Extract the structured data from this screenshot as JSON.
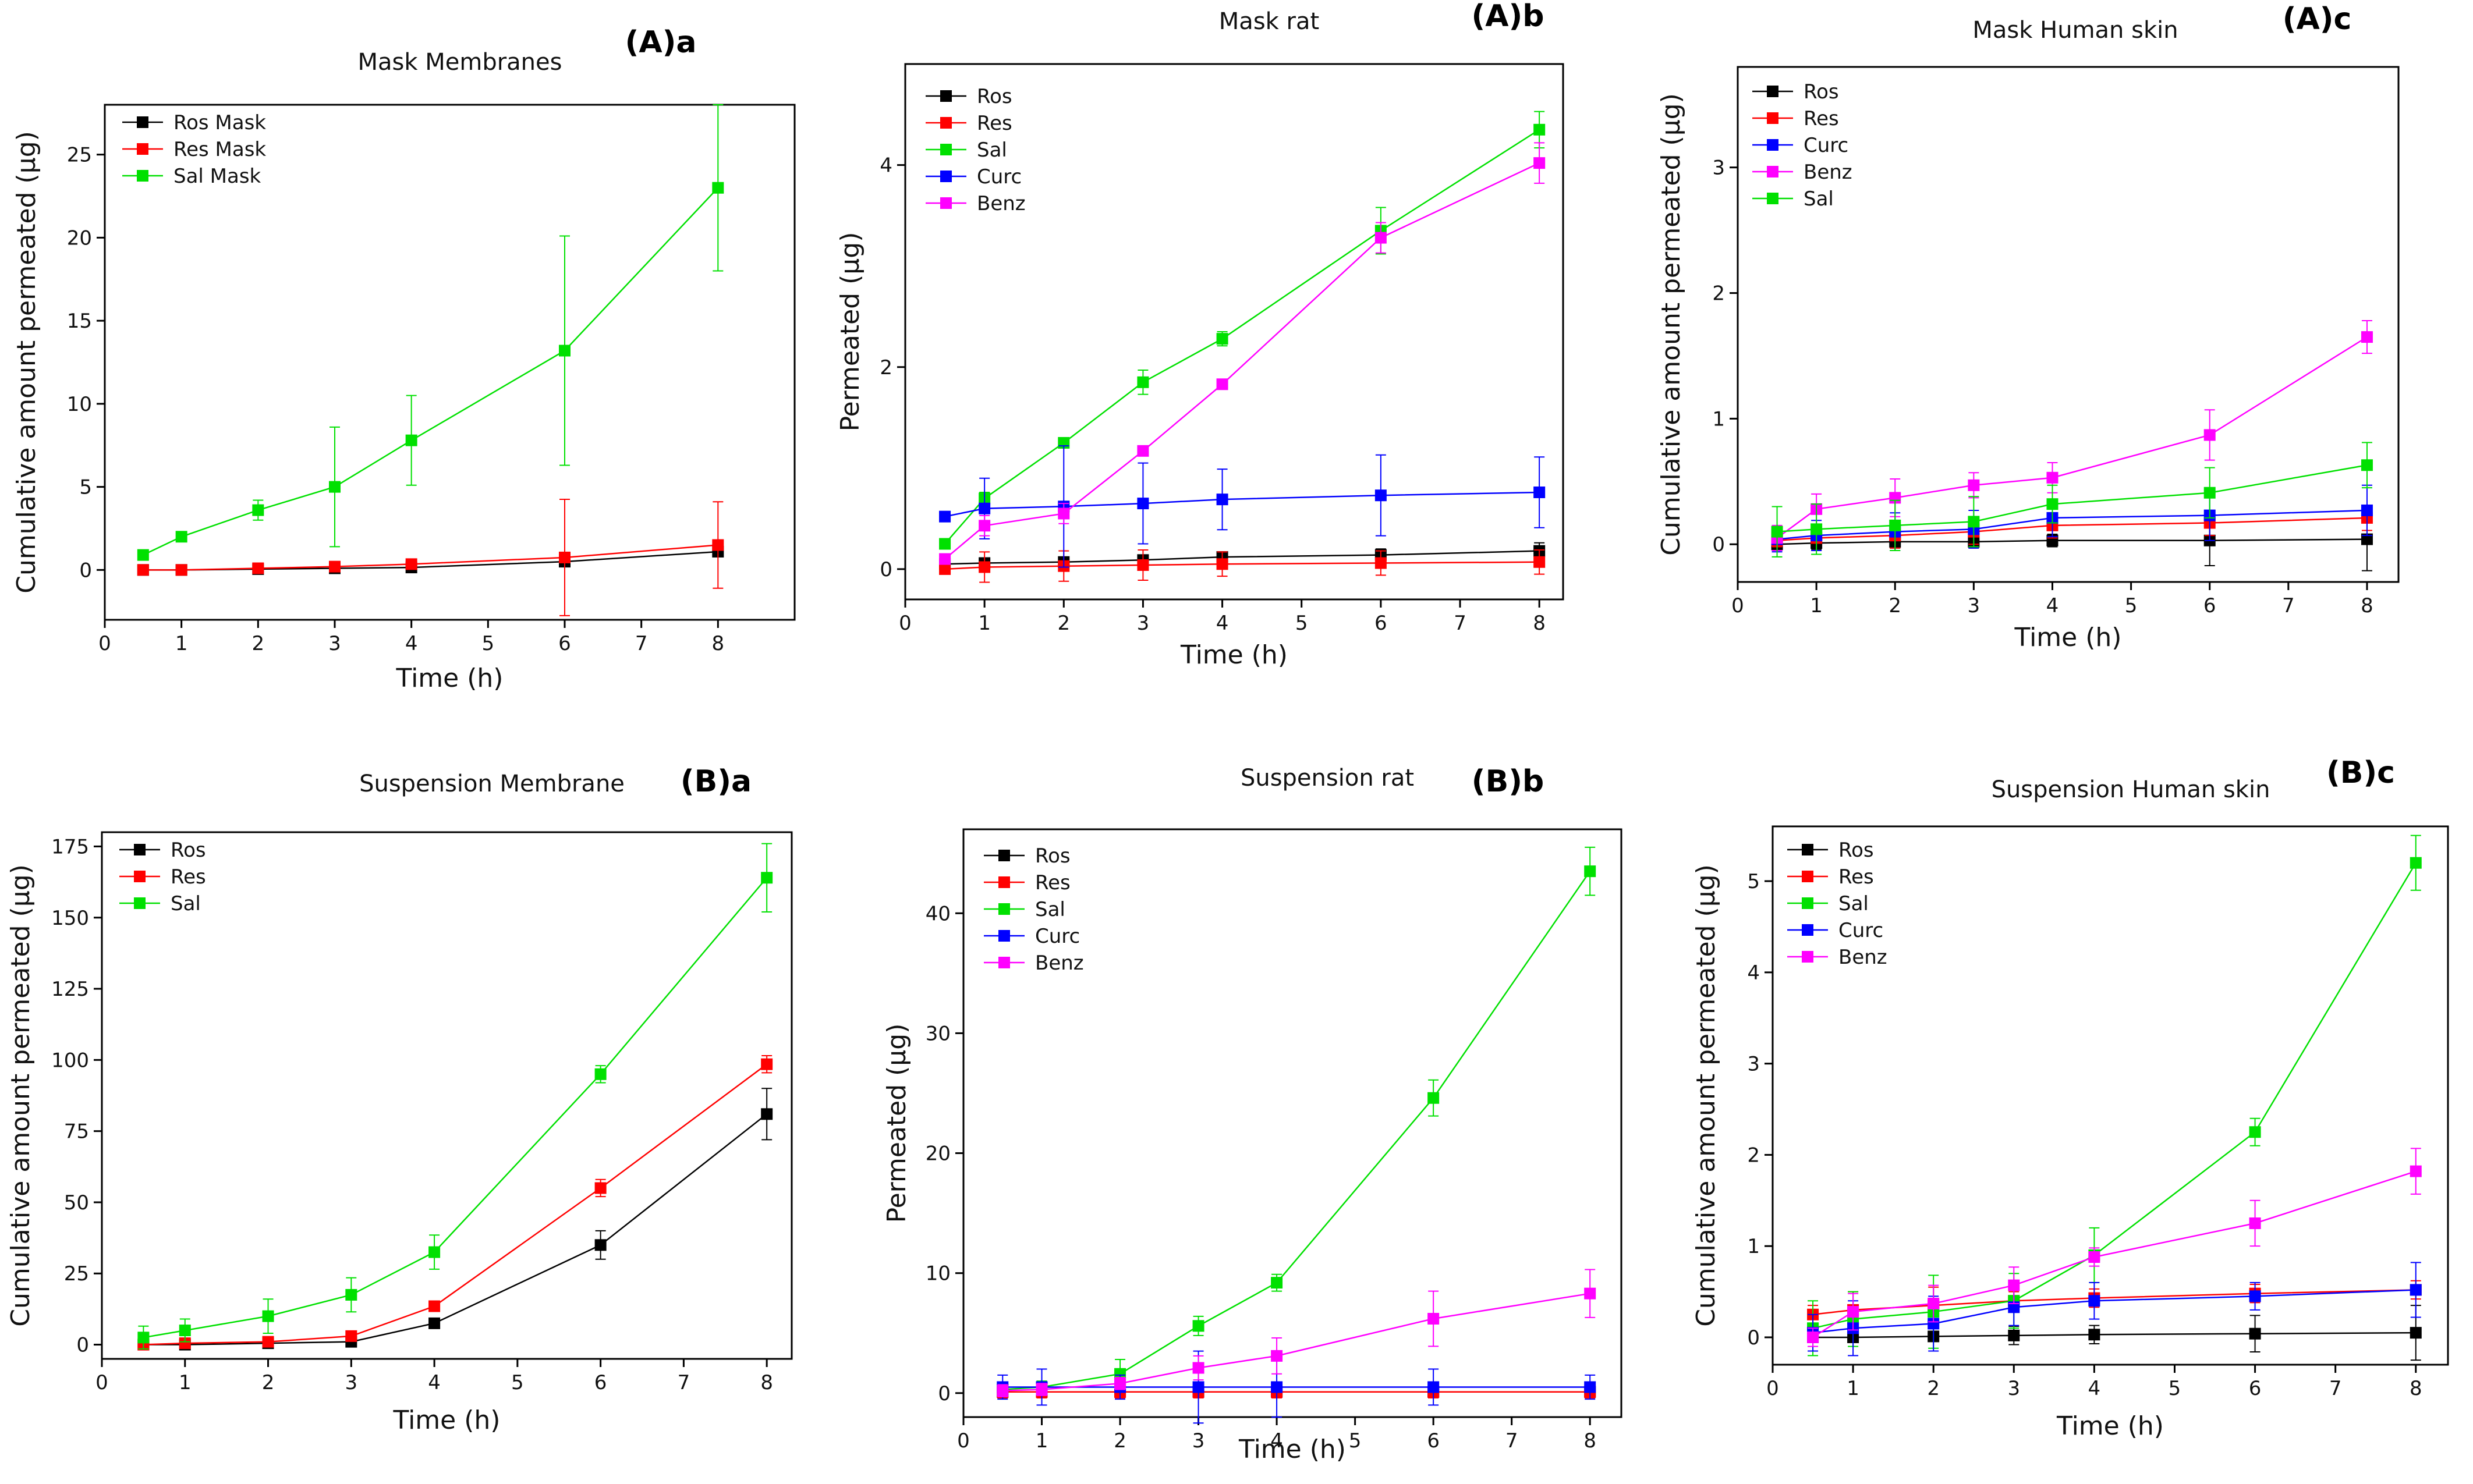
{
  "chart_data": [
    {
      "id": "Aa",
      "type": "line",
      "tag": "(A)a",
      "title": "Mask Membranes",
      "xlabel": "Time (h)",
      "ylabel": "Cumulative amount permeated (µg)",
      "xlim": [
        0,
        9
      ],
      "ylim": [
        -3,
        28
      ],
      "xticks": [
        0,
        1,
        2,
        3,
        4,
        5,
        6,
        7,
        8
      ],
      "yticks": [
        0,
        5,
        10,
        15,
        20,
        25
      ],
      "x": [
        0.5,
        1,
        2,
        3,
        4,
        6,
        8
      ],
      "legend_loc": "top-left",
      "series": [
        {
          "name": "Ros Mask",
          "color": "#000000",
          "values": [
            0,
            0,
            0.05,
            0.1,
            0.15,
            0.5,
            1.1
          ],
          "errors": [
            0,
            0,
            0,
            0,
            0,
            0,
            0
          ]
        },
        {
          "name": "Res Mask",
          "color": "#ff0000",
          "values": [
            0,
            0,
            0.1,
            0.2,
            0.35,
            0.75,
            1.5
          ],
          "errors": [
            0,
            0,
            0,
            0,
            0,
            3.5,
            2.6
          ]
        },
        {
          "name": "Sal Mask",
          "color": "#00e000",
          "values": [
            0.9,
            2.0,
            3.6,
            5.0,
            7.8,
            13.2,
            23.0
          ],
          "errors": [
            0,
            0.3,
            0.6,
            3.6,
            2.7,
            6.9,
            5.0
          ]
        }
      ]
    },
    {
      "id": "Ab",
      "type": "line",
      "tag": "(A)b",
      "title": "Mask  rat",
      "xlabel": "Time (h)",
      "ylabel": "Permeated (µg)",
      "xlim": [
        0,
        8.3
      ],
      "ylim": [
        -0.3,
        5.0
      ],
      "xticks": [
        0,
        1,
        2,
        3,
        4,
        5,
        6,
        7,
        8
      ],
      "yticks": [
        0,
        2,
        4
      ],
      "x": [
        0.5,
        1,
        2,
        3,
        4,
        6,
        8
      ],
      "legend_loc": "top-left",
      "series": [
        {
          "name": "Ros",
          "color": "#000000",
          "values": [
            0.05,
            0.06,
            0.07,
            0.09,
            0.12,
            0.14,
            0.18
          ],
          "errors": [
            0,
            0.05,
            0.05,
            0.05,
            0.05,
            0.06,
            0.08
          ]
        },
        {
          "name": "Res",
          "color": "#ff0000",
          "values": [
            0.0,
            0.02,
            0.03,
            0.04,
            0.05,
            0.06,
            0.07
          ],
          "errors": [
            0,
            0.15,
            0.15,
            0.15,
            0.12,
            0.12,
            0.12
          ]
        },
        {
          "name": "Sal",
          "color": "#00e000",
          "values": [
            0.25,
            0.7,
            1.25,
            1.85,
            2.28,
            3.35,
            4.35
          ],
          "errors": [
            0,
            0.06,
            0.05,
            0.12,
            0.07,
            0.23,
            0.18
          ]
        },
        {
          "name": "Curc",
          "color": "#0000ff",
          "values": [
            0.52,
            0.6,
            0.62,
            0.65,
            0.69,
            0.73,
            0.76
          ],
          "errors": [
            0,
            0.3,
            0.6,
            0.4,
            0.3,
            0.4,
            0.35
          ]
        },
        {
          "name": "Benz",
          "color": "#ff00ff",
          "values": [
            0.1,
            0.43,
            0.55,
            1.17,
            1.83,
            3.28,
            4.02
          ],
          "errors": [
            0,
            0.1,
            0.1,
            0.05,
            0.05,
            0.15,
            0.2
          ]
        }
      ]
    },
    {
      "id": "Ac",
      "type": "line",
      "tag": "(A)c",
      "title": "Mask Human skin",
      "xlabel": "Time (h)",
      "ylabel": "Cumulative amount permeated (µg)",
      "xlim": [
        0,
        8.4
      ],
      "ylim": [
        -0.3,
        3.8
      ],
      "xticks": [
        0,
        1,
        2,
        3,
        4,
        5,
        6,
        7,
        8
      ],
      "yticks": [
        0,
        1,
        2,
        3
      ],
      "x": [
        0.5,
        1,
        2,
        3,
        4,
        6,
        8
      ],
      "legend_loc": "top-left",
      "series": [
        {
          "name": "Ros",
          "color": "#000000",
          "values": [
            0.0,
            0.01,
            0.02,
            0.02,
            0.03,
            0.03,
            0.04
          ],
          "errors": [
            0.05,
            0.05,
            0.05,
            0.05,
            0.05,
            0.2,
            0.25
          ]
        },
        {
          "name": "Res",
          "color": "#ff0000",
          "values": [
            0.03,
            0.05,
            0.07,
            0.1,
            0.15,
            0.17,
            0.21
          ],
          "errors": [
            0.05,
            0.1,
            0.1,
            0.1,
            0.1,
            0.1,
            0.1
          ]
        },
        {
          "name": "Curc",
          "color": "#0000ff",
          "values": [
            0.04,
            0.07,
            0.1,
            0.12,
            0.21,
            0.23,
            0.27
          ],
          "errors": [
            0.1,
            0.12,
            0.15,
            0.15,
            0.15,
            0.2,
            0.2
          ]
        },
        {
          "name": "Benz",
          "color": "#ff00ff",
          "values": [
            0.05,
            0.28,
            0.37,
            0.47,
            0.53,
            0.87,
            1.65
          ],
          "errors": [
            0.1,
            0.12,
            0.15,
            0.1,
            0.12,
            0.2,
            0.13
          ]
        },
        {
          "name": "Sal",
          "color": "#00e000",
          "values": [
            0.1,
            0.12,
            0.15,
            0.18,
            0.32,
            0.41,
            0.63
          ],
          "errors": [
            0.2,
            0.2,
            0.2,
            0.2,
            0.15,
            0.2,
            0.18
          ]
        }
      ]
    },
    {
      "id": "Ba",
      "type": "line",
      "tag": "(B)a",
      "title": "Suspension Membrane",
      "xlabel": "Time (h)",
      "ylabel": "Cumulative amount permeated (µg)",
      "xlim": [
        0,
        8.3
      ],
      "ylim": [
        -5,
        180
      ],
      "xticks": [
        0,
        1,
        2,
        3,
        4,
        5,
        6,
        7,
        8
      ],
      "yticks": [
        0,
        25,
        50,
        75,
        100,
        125,
        150,
        175
      ],
      "x": [
        0.5,
        1,
        2,
        3,
        4,
        6,
        8
      ],
      "legend_loc": "top-left",
      "series": [
        {
          "name": "Ros",
          "color": "#000000",
          "values": [
            0,
            0,
            0.5,
            1.0,
            7.5,
            35,
            81
          ],
          "errors": [
            0,
            0,
            0,
            1,
            1,
            5,
            9
          ]
        },
        {
          "name": "Res",
          "color": "#ff0000",
          "values": [
            0,
            0.5,
            1.0,
            3.0,
            13.5,
            55,
            98.5
          ],
          "errors": [
            0,
            0,
            0,
            1,
            1,
            3,
            3
          ]
        },
        {
          "name": "Sal",
          "color": "#00e000",
          "values": [
            2.5,
            5,
            10,
            17.5,
            32.5,
            95,
            164
          ],
          "errors": [
            4,
            4,
            6,
            6,
            6,
            3,
            12
          ]
        }
      ]
    },
    {
      "id": "Bb",
      "type": "line",
      "tag": "(B)b",
      "title": "Suspension rat",
      "xlabel": "Time (h)",
      "ylabel": "Permeated (µg)",
      "xlim": [
        0,
        8.4
      ],
      "ylim": [
        -2,
        47
      ],
      "xticks": [
        0,
        1,
        2,
        3,
        4,
        5,
        6,
        7,
        8
      ],
      "yticks": [
        0,
        10,
        20,
        30,
        40
      ],
      "x": [
        0.5,
        1,
        2,
        3,
        4,
        6,
        8
      ],
      "legend_loc": "top-left",
      "series": [
        {
          "name": "Ros",
          "color": "#000000",
          "values": [
            0.1,
            0.1,
            0.1,
            0.1,
            0.1,
            0.1,
            0.1
          ],
          "errors": [
            0.5,
            0.5,
            0.5,
            0.5,
            0.5,
            0.5,
            0.5
          ]
        },
        {
          "name": "Res",
          "color": "#ff0000",
          "values": [
            0.1,
            0.1,
            0.1,
            0.1,
            0.1,
            0.1,
            0.1
          ],
          "errors": [
            0.5,
            0.5,
            0.5,
            0.5,
            0.5,
            0.5,
            0.5
          ]
        },
        {
          "name": "Sal",
          "color": "#00e000",
          "values": [
            0.3,
            0.5,
            1.6,
            5.6,
            9.2,
            24.6,
            43.5
          ],
          "errors": [
            0.5,
            0.5,
            1.2,
            0.8,
            0.7,
            1.5,
            2.0
          ]
        },
        {
          "name": "Curc",
          "color": "#0000ff",
          "values": [
            0.5,
            0.5,
            0.5,
            0.5,
            0.5,
            0.5,
            0.5
          ],
          "errors": [
            1.0,
            1.5,
            1.0,
            3.0,
            2.5,
            1.5,
            1.0
          ]
        },
        {
          "name": "Benz",
          "color": "#ff00ff",
          "values": [
            0.2,
            0.3,
            0.8,
            2.1,
            3.1,
            6.2,
            8.3
          ],
          "errors": [
            0.5,
            0.5,
            0.5,
            1.0,
            1.5,
            2.3,
            2.0
          ]
        }
      ]
    },
    {
      "id": "Bc",
      "type": "line",
      "tag": "(B)c",
      "title": "Suspension Human skin",
      "xlabel": "Time (h)",
      "ylabel": "Cumulative amount permeated (µg)",
      "xlim": [
        0,
        8.4
      ],
      "ylim": [
        -0.3,
        5.6
      ],
      "xticks": [
        0,
        1,
        2,
        3,
        4,
        5,
        6,
        7,
        8
      ],
      "yticks": [
        0,
        1,
        2,
        3,
        4,
        5
      ],
      "x": [
        0.5,
        1,
        2,
        3,
        4,
        6,
        8
      ],
      "legend_loc": "top-left",
      "series": [
        {
          "name": "Ros",
          "color": "#000000",
          "values": [
            0,
            0,
            0.01,
            0.02,
            0.03,
            0.04,
            0.05
          ],
          "errors": [
            0.05,
            0.05,
            0.05,
            0.1,
            0.1,
            0.2,
            0.3
          ]
        },
        {
          "name": "Res",
          "color": "#ff0000",
          "values": [
            0.25,
            0.3,
            0.35,
            0.4,
            0.43,
            0.48,
            0.52
          ],
          "errors": [
            0.1,
            0.2,
            0.2,
            0.1,
            0.1,
            0.1,
            0.1
          ]
        },
        {
          "name": "Sal",
          "color": "#00e000",
          "values": [
            0.1,
            0.2,
            0.28,
            0.4,
            0.9,
            2.25,
            5.2
          ],
          "errors": [
            0.3,
            0.3,
            0.4,
            0.3,
            0.3,
            0.15,
            0.3
          ]
        },
        {
          "name": "Curc",
          "color": "#0000ff",
          "values": [
            0.05,
            0.1,
            0.15,
            0.33,
            0.4,
            0.45,
            0.52
          ],
          "errors": [
            0.2,
            0.3,
            0.3,
            0.2,
            0.2,
            0.15,
            0.3
          ]
        },
        {
          "name": "Benz",
          "color": "#ff00ff",
          "values": [
            0,
            0.28,
            0.37,
            0.57,
            0.88,
            1.25,
            1.82
          ],
          "errors": [
            0.1,
            0.2,
            0.2,
            0.2,
            0.1,
            0.25,
            0.25
          ]
        }
      ]
    }
  ]
}
